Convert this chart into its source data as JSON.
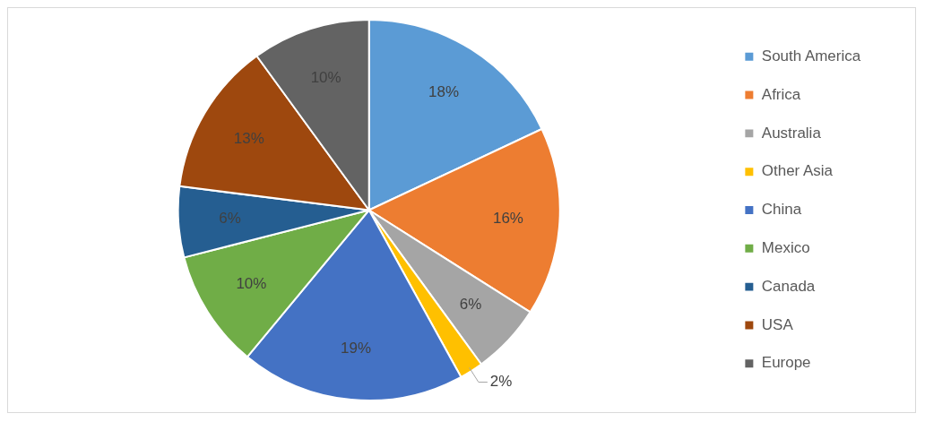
{
  "chart_data": {
    "type": "pie",
    "categories": [
      "South America",
      "Africa",
      "Australia",
      "Other Asia",
      "China",
      "Mexico",
      "Canada",
      "USA",
      "Europe"
    ],
    "values": [
      18,
      16,
      6,
      2,
      19,
      10,
      6,
      13,
      10
    ],
    "value_labels": [
      "18%",
      "16%",
      "6%",
      "2%",
      "19%",
      "10%",
      "6%",
      "13%",
      "10%"
    ],
    "colors": [
      "#5b9bd5",
      "#ed7d31",
      "#a5a5a5",
      "#ffc000",
      "#4472c4",
      "#70ad47",
      "#255e91",
      "#9e480e",
      "#636363"
    ],
    "legend": "right"
  }
}
